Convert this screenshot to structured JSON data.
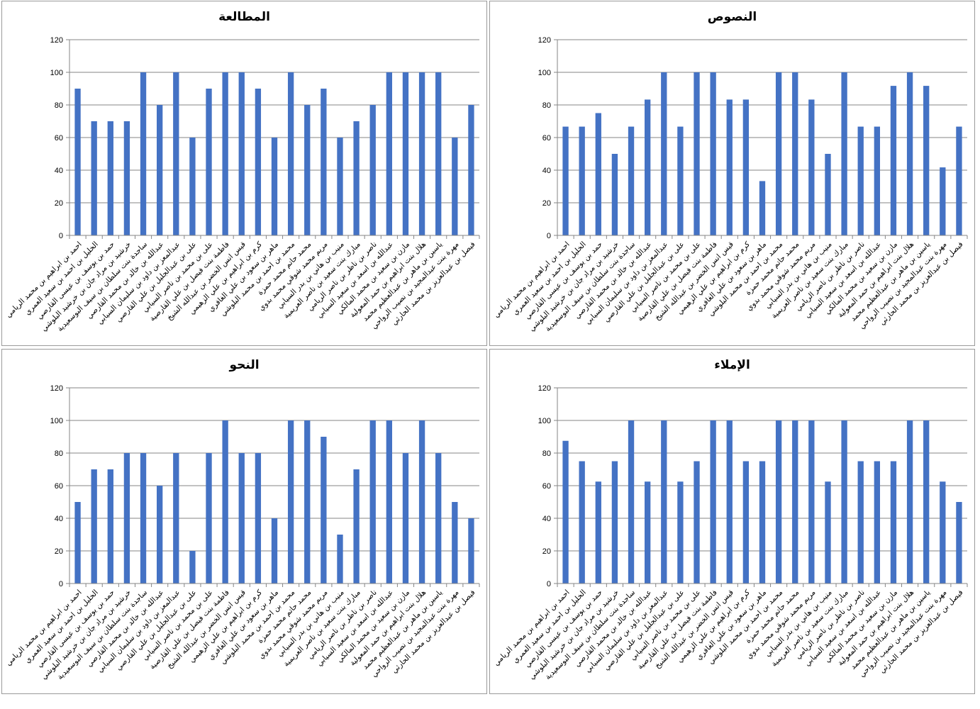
{
  "colors": {
    "bar": "#4472C4",
    "axis": "#868686",
    "panel_border": "#9a9a9a",
    "text": "#000000"
  },
  "students": [
    "احمد بن ابراهيم بن محمد الريامي",
    "الخليل بن احمد بن سعيد العمري",
    "حمد بن يوسف بن عيسى القارصي",
    "خرشيد بن مراد جان بن خرشيد البلوشي",
    "ساجدة بنت سلطان بن سيف البوسعيدية",
    "عبدالله بن خالد بن محمد القارصي",
    "عبدالمعز بن داود بن سليمان السيابي",
    "على بن عبدالجليل بن علي القارصي",
    "على بن محمد بن ناصر السيابي",
    "فاطمة بنت فيصل بن علي القارصية",
    "قيس انس الخضر بن عبدالله الشيخ",
    "كرم بن ابراهيم بن علي الزهيمي",
    "ماهر بن سعود بن علي الغافري",
    "محمد بن احمد بن محمد البلوشي",
    "محمد حاتم محمد حمزة",
    "مريم محمد شوقي محمد بدوي",
    "منيب بن هاني بن بدر السيابي",
    "مبارك بنت سعيد بن ناصر العريمية",
    "ناصر بن ناظر بن ناصر الريامي",
    "عبدالله بن اسعد بن سعيد السيابي",
    "مازن بن سعيد بن محمد المالكي",
    "هلال بنت ابراهيم بن حمد المعولية",
    "ياسين بن ماهر بن عبدالعظيم محمد",
    "مهرة بنت عبدالمجيد بن نصيب الرواحي",
    "فيصل بن عبدالعزيز بن محمد الحارثي"
  ],
  "chart_data": [
    {
      "type": "bar",
      "title": "المطالعة",
      "ylim": [
        0,
        120
      ],
      "yticks": [
        0,
        20,
        40,
        60,
        80,
        100,
        120
      ],
      "grid": true,
      "legend": "none",
      "values": [
        90,
        70,
        70,
        70,
        100,
        80,
        100,
        60,
        90,
        100,
        100,
        90,
        60,
        100,
        80,
        90,
        60,
        70,
        80,
        100,
        100,
        100,
        100,
        60,
        80
      ]
    },
    {
      "type": "bar",
      "title": "النصوص",
      "ylim": [
        0,
        120
      ],
      "yticks": [
        0,
        20,
        40,
        60,
        80,
        100,
        120
      ],
      "grid": true,
      "legend": "none",
      "values": [
        66.7,
        66.7,
        75,
        50,
        66.7,
        83.3,
        100,
        66.7,
        100,
        100,
        83.3,
        83.3,
        33.3,
        100,
        100,
        83.3,
        50,
        100,
        66.7,
        66.7,
        91.7,
        100,
        91.7,
        41.7,
        66.7
      ]
    },
    {
      "type": "bar",
      "title": "النحو",
      "ylim": [
        0,
        120
      ],
      "yticks": [
        0,
        20,
        40,
        60,
        80,
        100,
        120
      ],
      "grid": true,
      "legend": "none",
      "values": [
        50,
        70,
        70,
        80,
        80,
        60,
        80,
        20,
        80,
        100,
        80,
        80,
        40,
        100,
        100,
        90,
        30,
        70,
        100,
        100,
        80,
        100,
        80,
        50,
        40
      ]
    },
    {
      "type": "bar",
      "title": "الإملاء",
      "ylim": [
        0,
        120
      ],
      "yticks": [
        0,
        20,
        40,
        60,
        80,
        100,
        120
      ],
      "grid": true,
      "legend": "none",
      "values": [
        87.5,
        75,
        62.5,
        75,
        100,
        62.5,
        100,
        62.5,
        75,
        100,
        100,
        75,
        75,
        100,
        100,
        100,
        62.5,
        100,
        75,
        75,
        75,
        100,
        100,
        62.5,
        50
      ]
    }
  ]
}
